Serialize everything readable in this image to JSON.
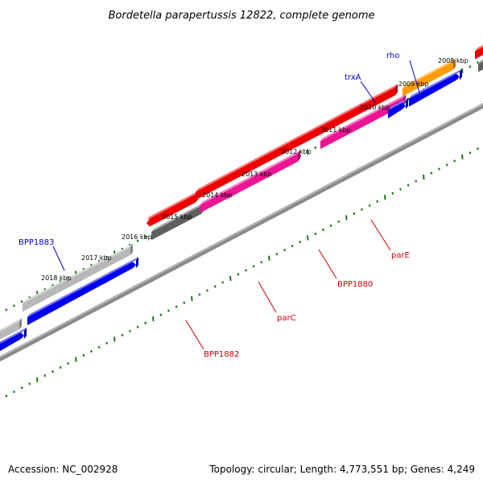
{
  "title": "Bordetella parapertussis 12822, complete genome",
  "tick_labels": [
    "2008 kbp",
    "2009 kbp",
    "2010 kbp",
    "2011 kbp",
    "2012 kbp",
    "2013 kbp",
    "2014 kbp",
    "2015 kbp",
    "2016 kbp",
    "2017 kbp",
    "2018 kbp"
  ],
  "gene_labels": [
    {
      "text": "rho",
      "color": "#0000cc"
    },
    {
      "text": "trxA",
      "color": "#0000cc"
    },
    {
      "text": "BPP1883",
      "color": "#0000cc"
    },
    {
      "text": "parE",
      "color": "#cc0000"
    },
    {
      "text": "BPP1880",
      "color": "#cc0000"
    },
    {
      "text": "parC",
      "color": "#cc0000"
    },
    {
      "text": "BPP1882",
      "color": "#cc0000"
    }
  ],
  "colors": {
    "blue": "#0000ee",
    "red": "#ee0000",
    "pink": "#ee1493",
    "orange": "#ff9a00",
    "gray_light": "#b8b8b8",
    "gray_dark": "#5e5e5e",
    "backbone": "#808080",
    "ticks": "#1a7a1a"
  },
  "footer": {
    "accession": "Accession: NC_002928",
    "stats": "Topology: circular; Length: 4,773,551 bp; Genes: 4,249"
  }
}
